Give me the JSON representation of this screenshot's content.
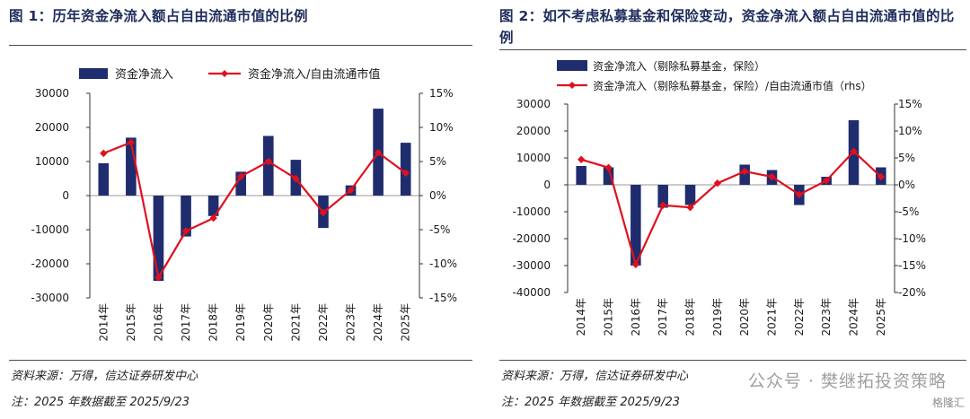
{
  "watermark": {
    "text": "公众号 · 樊继拓投资策略",
    "logo_text": "格隆汇"
  },
  "charts": [
    {
      "title": "图 1：历年资金净流入额占自由流通市值的比例",
      "source": "资料来源：万得，信达证券研发中心",
      "note": "注：2025 年数据截至 2025/9/23",
      "legend_bar": "资金净流入",
      "legend_line": "资金净流入/自由流通市值",
      "bar_color": "#1f2d6e",
      "line_color": "#e0101e",
      "left_ticks": [
        "30000",
        "20000",
        "10000",
        "0",
        "-10000",
        "-20000",
        "-30000"
      ],
      "right_ticks": [
        "15%",
        "10%",
        "5%",
        "0%",
        "-5%",
        "-10%",
        "-15%"
      ],
      "chart_data": {
        "type": "bar",
        "categories": [
          "2014年",
          "2015年",
          "2016年",
          "2017年",
          "2018年",
          "2019年",
          "2020年",
          "2021年",
          "2022年",
          "2023年",
          "2024年",
          "2025年"
        ],
        "series": [
          {
            "name": "资金净流入",
            "axis": "left",
            "values": [
              9500,
              17000,
              -25000,
              -12000,
              -6000,
              7000,
              17500,
              10500,
              -9500,
              3000,
              25500,
              15500
            ]
          },
          {
            "name": "资金净流入/自由流通市值",
            "axis": "right",
            "type": "line",
            "values": [
              6.2,
              7.8,
              -12.0,
              -5.2,
              -3.3,
              2.8,
              5.0,
              2.5,
              -2.5,
              0.8,
              6.3,
              3.3
            ]
          }
        ],
        "ylim_left": [
          -30000,
          30000
        ],
        "ylim_right": [
          -15,
          15
        ]
      }
    },
    {
      "title": "图 2：如不考虑私募基金和保险变动，资金净流入额占自由流通市值的比例",
      "source": "资料来源：万得，信达证券研发中心",
      "note": "注：2025 年数据截至 2025/9/23",
      "legend_bar": "资金净流入（剔除私募基金，保险）",
      "legend_line": "资金净流入（剔除私募基金，保险）/自由流通市值（rhs）",
      "bar_color": "#1f2d6e",
      "line_color": "#e0101e",
      "left_ticks": [
        "30000",
        "20000",
        "10000",
        "0",
        "-10000",
        "-20000",
        "-30000",
        "-40000"
      ],
      "right_ticks": [
        "15%",
        "10%",
        "5%",
        "0%",
        "-5%",
        "-10%",
        "-15%",
        "-20%"
      ],
      "chart_data": {
        "type": "bar",
        "categories": [
          "2014年",
          "2015年",
          "2016年",
          "2017年",
          "2018年",
          "2019年",
          "2020年",
          "2021年",
          "2022年",
          "2023年",
          "2024年",
          "2025年"
        ],
        "series": [
          {
            "name": "资金净流入（剔除私募基金，保险）",
            "axis": "left",
            "values": [
              7000,
              6500,
              -30000,
              -8500,
              -7500,
              0,
              7500,
              5500,
              -7500,
              3000,
              24000,
              6500
            ]
          },
          {
            "name": "资金净流入（剔除私募基金，保险）/自由流通市值（rhs）",
            "axis": "right",
            "type": "line",
            "values": [
              4.7,
              3.2,
              -14.8,
              -3.8,
              -4.2,
              0.3,
              2.5,
              1.5,
              -1.8,
              0.8,
              6.2,
              1.5
            ]
          }
        ],
        "ylim_left": [
          -40000,
          30000
        ],
        "ylim_right": [
          -20,
          15
        ]
      }
    }
  ]
}
